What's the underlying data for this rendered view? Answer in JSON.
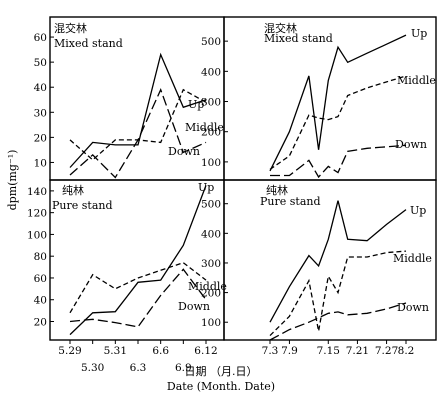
{
  "figure": {
    "ylabel": "dpm(mg⁻¹)",
    "xlabel_cn": "日期 （月.日）",
    "xlabel_en": "Date (Month. Date)",
    "line_color": "#000000"
  },
  "chart_data": [
    {
      "type": "line",
      "panel": "left-top",
      "title_cn": "混交林",
      "title": "Mixed stand",
      "x": [
        0,
        1,
        2,
        3,
        4,
        5,
        6
      ],
      "yticks": [
        10,
        20,
        30,
        40,
        50,
        60
      ],
      "ylim": [
        3,
        68
      ],
      "series": [
        {
          "name": "Up",
          "style": "solid",
          "values": [
            8,
            18,
            17,
            17,
            53,
            32,
            35
          ]
        },
        {
          "name": "Middle",
          "style": "dashed",
          "values": [
            19,
            11,
            19,
            19,
            18,
            39,
            34
          ]
        },
        {
          "name": "Down",
          "style": "longdash",
          "values": [
            5,
            13,
            4,
            19,
            39,
            14,
            18
          ]
        }
      ]
    },
    {
      "type": "line",
      "panel": "left-bottom",
      "title_cn": "纯林",
      "title": "Pure stand",
      "x": [
        0,
        1,
        2,
        3,
        4,
        5,
        6
      ],
      "xticklabels": [
        "5.29",
        "5.30",
        "5.31",
        "6.3",
        "6.6",
        "6.9",
        "6.12"
      ],
      "yticks": [
        20,
        40,
        60,
        80,
        100,
        120,
        140
      ],
      "ylim": [
        3,
        150
      ],
      "series": [
        {
          "name": "Up",
          "style": "solid",
          "values": [
            8,
            28,
            29,
            56,
            58,
            90,
            145
          ]
        },
        {
          "name": "Middle",
          "style": "dashed",
          "values": [
            28,
            63,
            50,
            60,
            67,
            74,
            58
          ]
        },
        {
          "name": "Down",
          "style": "longdash",
          "values": [
            20,
            22,
            19,
            15,
            44,
            68,
            40
          ]
        }
      ]
    },
    {
      "type": "line",
      "panel": "right-top",
      "title_cn": "混交林",
      "title": "Mixed stand",
      "x": [
        0,
        2,
        4,
        5,
        6,
        7,
        8,
        10,
        12,
        14
      ],
      "yticks": [
        100,
        200,
        300,
        400,
        500
      ],
      "ylim": [
        40,
        580
      ],
      "series": [
        {
          "name": "Up",
          "style": "solid",
          "values": [
            70,
            200,
            385,
            140,
            370,
            480,
            430,
            460,
            490,
            520
          ]
        },
        {
          "name": "Middle",
          "style": "dashed",
          "values": [
            75,
            120,
            255,
            245,
            240,
            250,
            320,
            345,
            365,
            385
          ]
        },
        {
          "name": "Down",
          "style": "longdash",
          "values": [
            55,
            55,
            105,
            50,
            85,
            65,
            135,
            145,
            150,
            155
          ]
        }
      ]
    },
    {
      "type": "line",
      "panel": "right-bottom",
      "title_cn": "纯林",
      "title": "Pure stand",
      "x": [
        0,
        2,
        4,
        5,
        6,
        7,
        8,
        10,
        12,
        14
      ],
      "xticklabels": [
        "7.3",
        "7.9",
        "7.15",
        "7.21",
        "7.27",
        "8.2"
      ],
      "xtickpositions": [
        0,
        2,
        6,
        9,
        12,
        14
      ],
      "yticks": [
        100,
        200,
        300,
        400,
        500
      ],
      "ylim": [
        40,
        580
      ],
      "series": [
        {
          "name": "Up",
          "style": "solid",
          "values": [
            100,
            220,
            325,
            290,
            380,
            510,
            380,
            375,
            430,
            480
          ]
        },
        {
          "name": "Middle",
          "style": "dashed",
          "values": [
            55,
            120,
            240,
            70,
            255,
            200,
            320,
            320,
            335,
            340
          ]
        },
        {
          "name": "Down",
          "style": "longdash",
          "values": [
            40,
            75,
            100,
            115,
            130,
            135,
            125,
            130,
            145,
            165
          ]
        }
      ]
    }
  ]
}
